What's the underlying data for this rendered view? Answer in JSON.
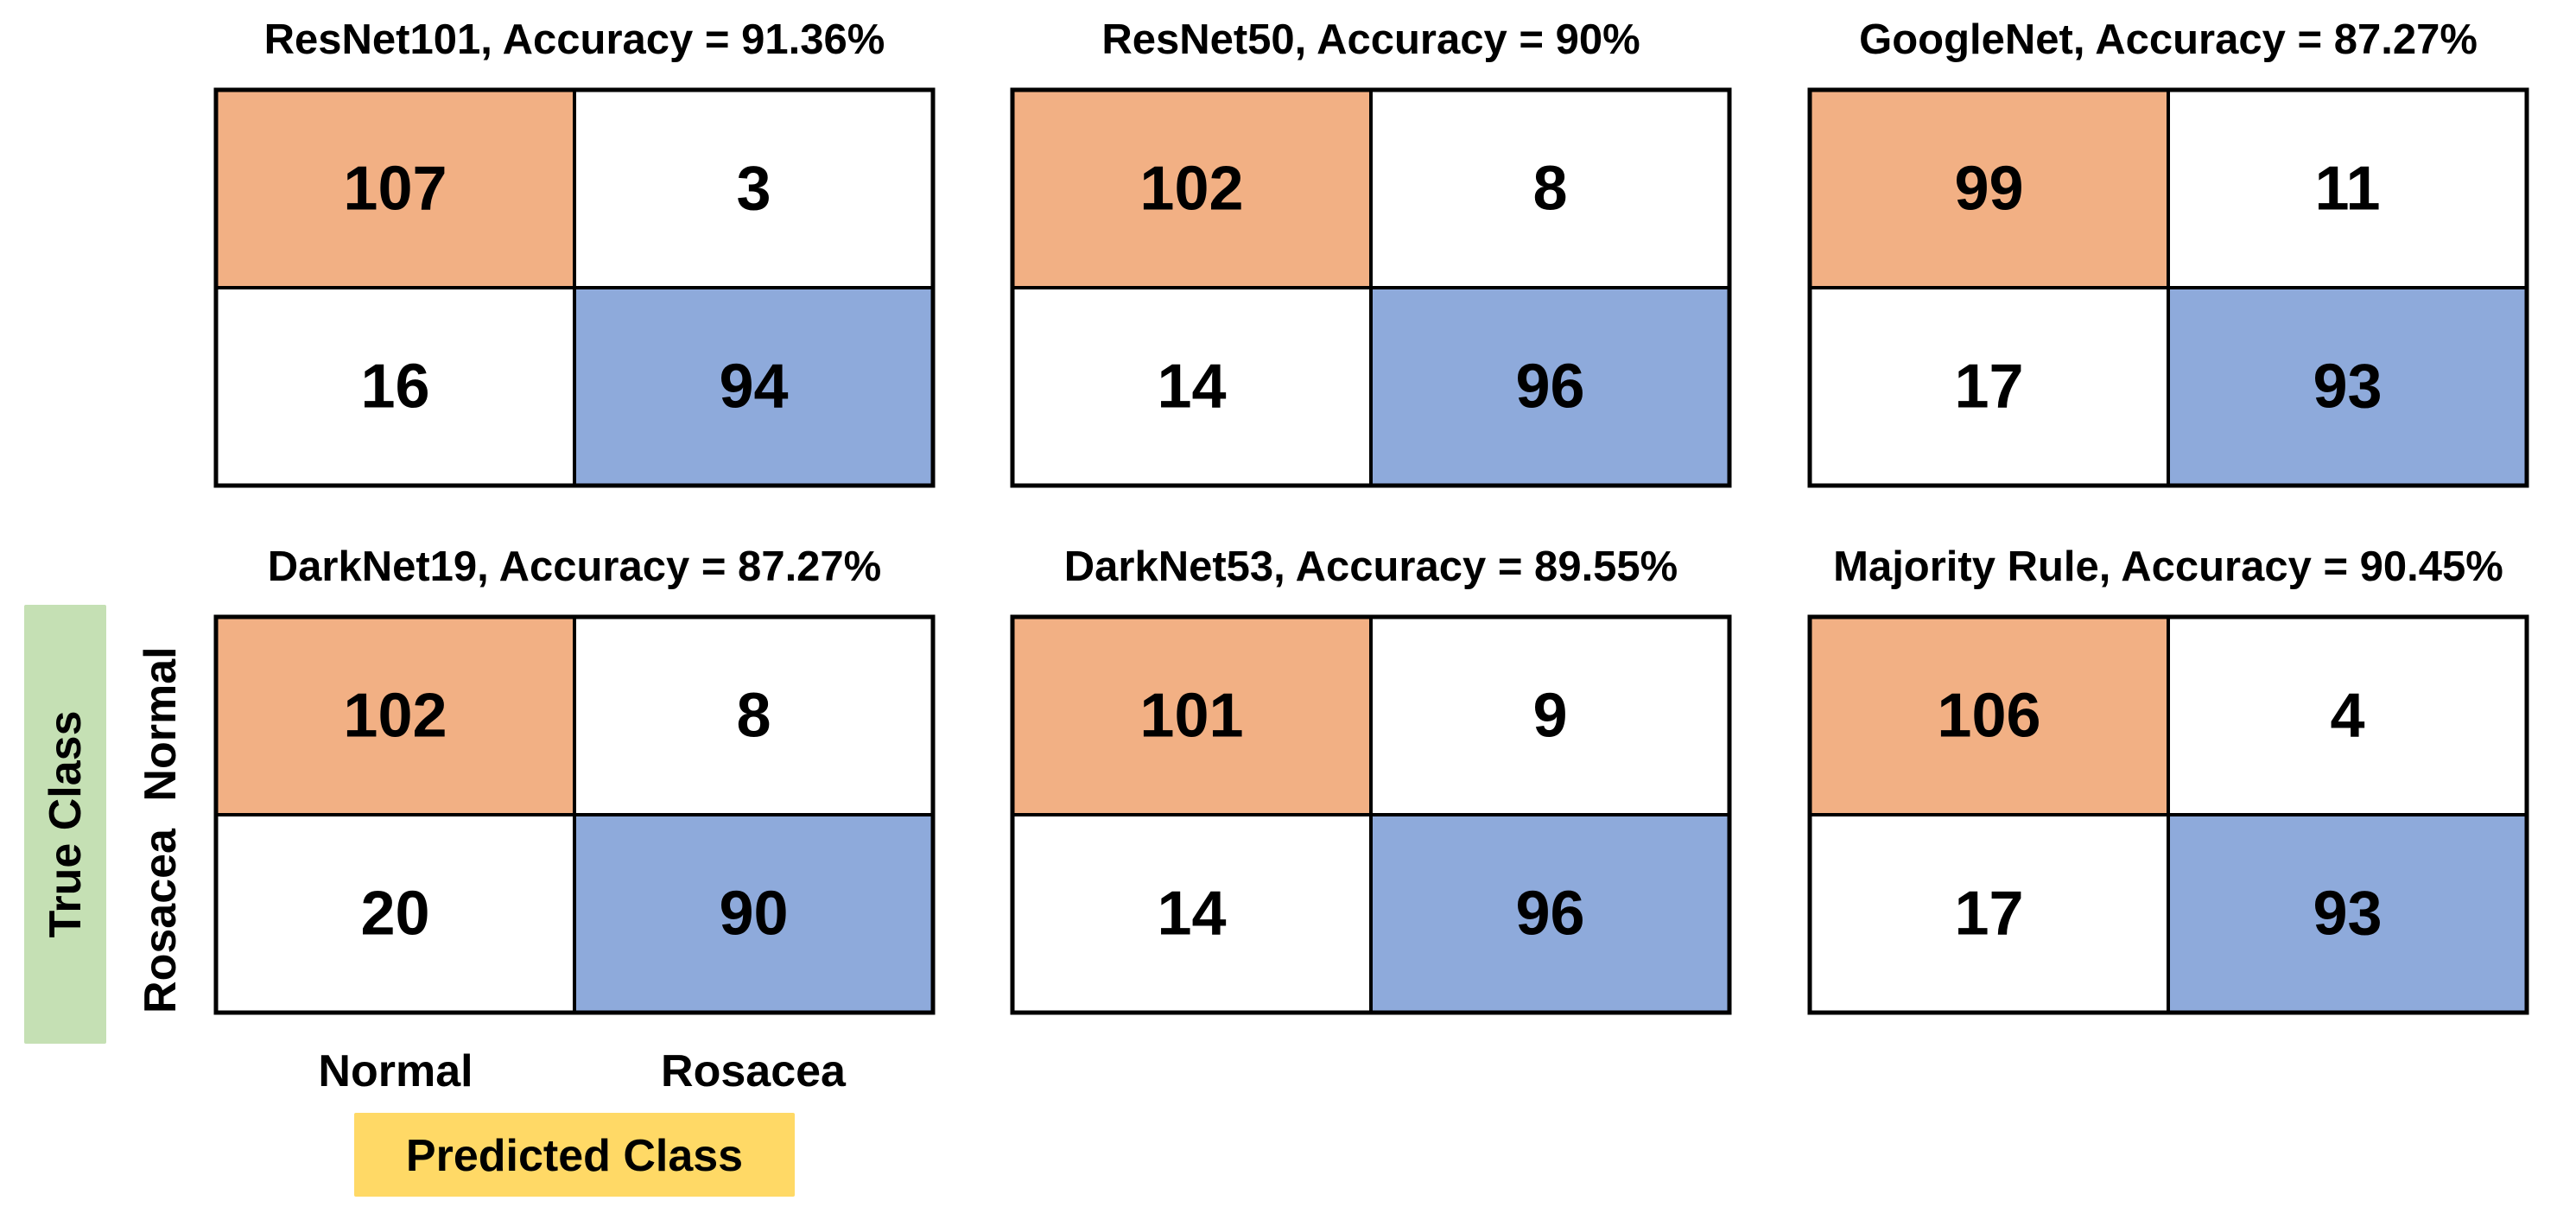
{
  "chart_data": {
    "type": "heatmap",
    "xlabel": "Predicted Class",
    "ylabel": "True Class",
    "class_labels": [
      "Normal",
      "Rosacea"
    ],
    "colors": {
      "true_normal": "#f2b084",
      "true_rosacea": "#8eaadb",
      "off_diagonal": "#ffffff",
      "xlabel_bg": "#ffd966",
      "ylabel_bg": "#c5e0b4",
      "border": "#000000"
    },
    "panels": [
      {
        "title": "ResNet101, Accuracy = 91.36%",
        "matrix": [
          [
            107,
            3
          ],
          [
            16,
            94
          ]
        ]
      },
      {
        "title": "ResNet50, Accuracy = 90%",
        "matrix": [
          [
            102,
            8
          ],
          [
            14,
            96
          ]
        ]
      },
      {
        "title": "GoogleNet, Accuracy = 87.27%",
        "matrix": [
          [
            99,
            11
          ],
          [
            17,
            93
          ]
        ]
      },
      {
        "title": "DarkNet19, Accuracy = 87.27%",
        "matrix": [
          [
            102,
            8
          ],
          [
            20,
            90
          ]
        ]
      },
      {
        "title": "DarkNet53, Accuracy = 89.55%",
        "matrix": [
          [
            101,
            9
          ],
          [
            14,
            96
          ]
        ]
      },
      {
        "title": "Majority Rule, Accuracy = 90.45%",
        "matrix": [
          [
            106,
            4
          ],
          [
            17,
            93
          ]
        ]
      }
    ]
  }
}
